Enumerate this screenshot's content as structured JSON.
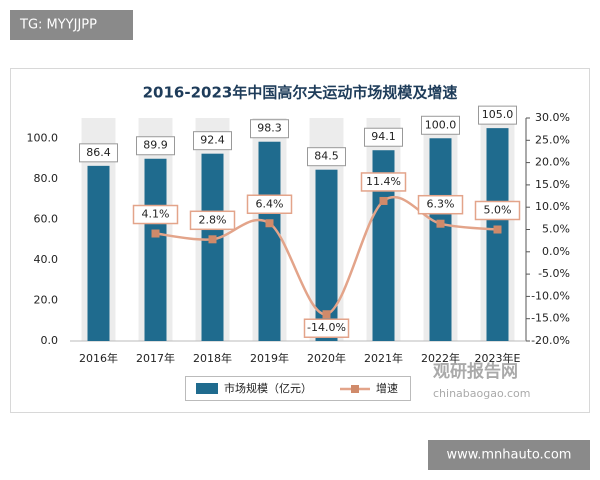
{
  "watermarks": {
    "top_left": "TG: MYYJJPP",
    "bottom_right": "www.mnhauto.com",
    "logo": "观研报告网",
    "logo_url": "chinabaogao.com"
  },
  "chart_data": {
    "type": "bar_line",
    "title": "2016-2023年中国高尔夫运动市场规模及增速",
    "categories": [
      "2016年",
      "2017年",
      "2018年",
      "2019年",
      "2020年",
      "2021年",
      "2022年",
      "2023年E"
    ],
    "series": [
      {
        "name": "市场规模（亿元）",
        "type": "bar",
        "color": "#1f6b8e",
        "values": [
          86.4,
          89.9,
          92.4,
          98.3,
          84.5,
          94.1,
          100.0,
          105.0
        ],
        "value_labels": [
          "86.4",
          "89.9",
          "92.4",
          "98.3",
          "84.5",
          "94.1",
          "100.0",
          "105.0"
        ]
      },
      {
        "name": "增速",
        "type": "line",
        "axis": "y2",
        "color": "#e3a48a",
        "values": [
          null,
          4.1,
          2.8,
          6.4,
          -14.0,
          11.4,
          6.3,
          5.0
        ],
        "value_labels": [
          null,
          "4.1%",
          "2.8%",
          "6.4%",
          "-14.0%",
          "11.4%",
          "6.3%",
          "5.0%"
        ]
      }
    ],
    "ylim": [
      0,
      110
    ],
    "yticks": [
      {
        "value": 0,
        "label": "0.0"
      },
      {
        "value": 20,
        "label": "20.0"
      },
      {
        "value": 40,
        "label": "40.0"
      },
      {
        "value": 60,
        "label": "60.0"
      },
      {
        "value": 80,
        "label": "80.0"
      },
      {
        "value": 100,
        "label": "100.0"
      }
    ],
    "y2lim": [
      -20,
      30
    ],
    "y2ticks": [
      {
        "value": 30,
        "label": "30.0%"
      },
      {
        "value": 25,
        "label": "25.0%"
      },
      {
        "value": 20,
        "label": "20.0%"
      },
      {
        "value": 15,
        "label": "15.0%"
      },
      {
        "value": 10,
        "label": "10.0%"
      },
      {
        "value": 5,
        "label": "5.0%"
      },
      {
        "value": 0,
        "label": "0.0%"
      },
      {
        "value": -5,
        "label": "-5.0%"
      },
      {
        "value": -10,
        "label": "-10.0%"
      },
      {
        "value": -15,
        "label": "-15.0%"
      },
      {
        "value": -20,
        "label": "-20.0%"
      }
    ],
    "legend": "bottom"
  }
}
